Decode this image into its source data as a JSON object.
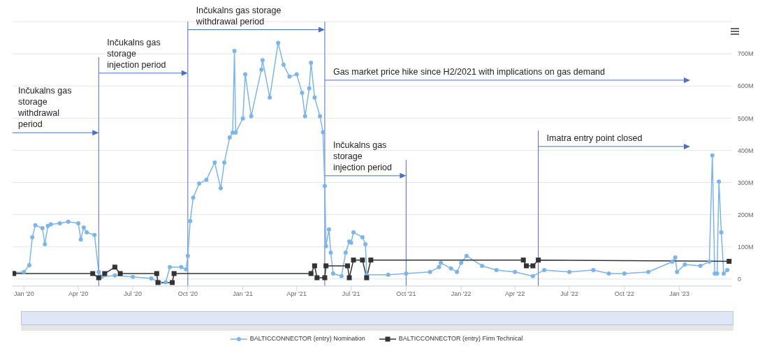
{
  "chart_data": {
    "type": "line",
    "xlim": [
      "2019-12-13",
      "2023-03-30"
    ],
    "ylim": [
      -22,
      800
    ],
    "xticks": [
      {
        "value": "2020-01-01",
        "label": "Jan '20"
      },
      {
        "value": "2020-04-01",
        "label": "Apr '20"
      },
      {
        "value": "2020-07-01",
        "label": "Jul '20"
      },
      {
        "value": "2020-10-01",
        "label": "Oct '20"
      },
      {
        "value": "2021-01-01",
        "label": "Jan '21"
      },
      {
        "value": "2021-04-01",
        "label": "Apr '21"
      },
      {
        "value": "2021-07-01",
        "label": "Jul '21"
      },
      {
        "value": "2021-10-01",
        "label": "Oct '21"
      },
      {
        "value": "2022-01-01",
        "label": "Jan '22"
      },
      {
        "value": "2022-04-01",
        "label": "Apr '22"
      },
      {
        "value": "2022-07-01",
        "label": "Jul '22"
      },
      {
        "value": "2022-10-01",
        "label": "Oct '22"
      },
      {
        "value": "2023-01-01",
        "label": "Jan '23"
      }
    ],
    "yticks": [
      0,
      {
        "value": 100,
        "label": "100M"
      },
      {
        "value": 200,
        "label": "200M"
      },
      {
        "value": 300,
        "label": "300M"
      },
      {
        "value": 400,
        "label": "400M"
      },
      {
        "value": 500,
        "label": "500M"
      },
      {
        "value": 600,
        "label": "600M"
      },
      {
        "value": 700,
        "label": "700M"
      }
    ],
    "grid": "y",
    "legend": "bottom",
    "series": [
      {
        "name": "BALTICCONNECTOR (entry) Nomination",
        "color": "#7cb5ec",
        "marker": "circle",
        "x": [
          "2019-12-15",
          "2020-01-01",
          "2020-01-10",
          "2020-01-15",
          "2020-01-20",
          "2020-02-01",
          "2020-02-05",
          "2020-02-10",
          "2020-02-15",
          "2020-03-01",
          "2020-03-15",
          "2020-04-01",
          "2020-04-05",
          "2020-04-10",
          "2020-04-15",
          "2020-04-28",
          "2020-05-05",
          "2020-05-10",
          "2020-06-01",
          "2020-07-01",
          "2020-08-01",
          "2020-08-15",
          "2020-08-25",
          "2020-09-01",
          "2020-09-20",
          "2020-09-28",
          "2020-10-01",
          "2020-10-05",
          "2020-10-10",
          "2020-10-20",
          "2020-11-01",
          "2020-11-15",
          "2020-11-25",
          "2020-12-01",
          "2020-12-10",
          "2020-12-15",
          "2020-12-18",
          "2020-12-20",
          "2021-01-01",
          "2021-01-05",
          "2021-01-15",
          "2021-02-01",
          "2021-02-03",
          "2021-02-15",
          "2021-03-01",
          "2021-03-10",
          "2021-03-20",
          "2021-04-01",
          "2021-04-10",
          "2021-04-15",
          "2021-04-22",
          "2021-04-25",
          "2021-05-01",
          "2021-05-10",
          "2021-05-15",
          "2021-05-18",
          "2021-05-20",
          "2021-05-25",
          "2021-05-28",
          "2021-06-01",
          "2021-06-15",
          "2021-06-22",
          "2021-06-28",
          "2021-07-01",
          "2021-07-05",
          "2021-07-20",
          "2021-07-25",
          "2021-07-27",
          "2021-09-01",
          "2021-10-01",
          "2021-11-10",
          "2021-11-25",
          "2021-11-28",
          "2021-12-15",
          "2021-12-25",
          "2022-01-01",
          "2022-01-10",
          "2022-02-05",
          "2022-03-01",
          "2022-04-01",
          "2022-05-01",
          "2022-05-20",
          "2022-07-01",
          "2022-08-10",
          "2022-09-05",
          "2022-10-01",
          "2022-11-10",
          "2022-12-20",
          "2022-12-25",
          "2022-12-28",
          "2023-01-10",
          "2023-02-05",
          "2023-02-20",
          "2023-02-25",
          "2023-03-01",
          "2023-03-05",
          "2023-03-08",
          "2023-03-12",
          "2023-03-16",
          "2023-03-22"
        ],
        "values": [
          20,
          22,
          43,
          130,
          167,
          158,
          108,
          165,
          170,
          173,
          178,
          173,
          123,
          160,
          145,
          137,
          22,
          7,
          11,
          7,
          2,
          -11,
          -10,
          37,
          37,
          30,
          72,
          180,
          253,
          297,
          308,
          362,
          282,
          362,
          440,
          455,
          709,
          455,
          499,
          636,
          506,
          651,
          680,
          564,
          734,
          666,
          629,
          636,
          579,
          506,
          593,
          672,
          564,
          506,
          456,
          289,
          102,
          154,
          82,
          17,
          9,
          82,
          117,
          113,
          145,
          130,
          108,
          13,
          13,
          17,
          22,
          37,
          50,
          33,
          22,
          50,
          72,
          41,
          28,
          22,
          9,
          28,
          22,
          28,
          17,
          17,
          22,
          54,
          67,
          22,
          45,
          41,
          54,
          384,
          17,
          17,
          303,
          145,
          17,
          28
        ]
      },
      {
        "name": "BALTICCONNECTOR (entry) Firm Technical",
        "color": "#333333",
        "marker": "square",
        "x": [
          "2019-12-15",
          "2020-04-25",
          "2020-05-05",
          "2020-05-15",
          "2020-06-01",
          "2020-06-10",
          "2020-08-10",
          "2020-08-12",
          "2020-09-05",
          "2020-09-08",
          "2021-04-25",
          "2021-05-01",
          "2021-05-05",
          "2021-05-18",
          "2021-05-20",
          "2021-06-25",
          "2021-06-28",
          "2021-07-05",
          "2021-07-20",
          "2021-07-27",
          "2021-08-03",
          "2022-04-15",
          "2022-04-20",
          "2022-05-01",
          "2022-05-10",
          "2023-03-25"
        ],
        "values": [
          17,
          17,
          4,
          17,
          37,
          17,
          17,
          -11,
          -11,
          17,
          17,
          41,
          4,
          4,
          41,
          41,
          4,
          59,
          59,
          4,
          59,
          59,
          41,
          41,
          59,
          55
        ]
      }
    ],
    "ref_lines": [
      {
        "axis": "x",
        "value": "2020-05-05",
        "color": "#4a6fc4"
      },
      {
        "axis": "x",
        "value": "2020-10-01",
        "color": "#4a6fc4"
      },
      {
        "axis": "x",
        "value": "2021-05-18",
        "color": "#4a6fc4"
      },
      {
        "axis": "x",
        "value": "2021-10-01",
        "color": "#4a6fc4"
      },
      {
        "axis": "x",
        "value": "2022-05-10",
        "color": "#4a6fc4"
      }
    ],
    "annotations": [
      "Inčukalns gas\nstorage\nwithdrawal\nperiod",
      {
        "text": "Inčukalns gas\nstorage\ninjection period",
        "x": "2020-05-05",
        "y": 640
      },
      {
        "text": "Inčukalns gas storage\nwithdrawal period",
        "x": "2020-10-01",
        "y": 775
      },
      {
        "text": "Gas market price hike since H2/2021 with implications on gas demand",
        "x": "2021-05-18",
        "y": 618
      },
      {
        "text": "Inčukalns gas\nstorage\ninjection period",
        "x": "2021-05-18",
        "y": 321
      },
      {
        "text": "Imatra entry point closed",
        "x": "2022-05-10",
        "y": 412
      }
    ]
  }
}
